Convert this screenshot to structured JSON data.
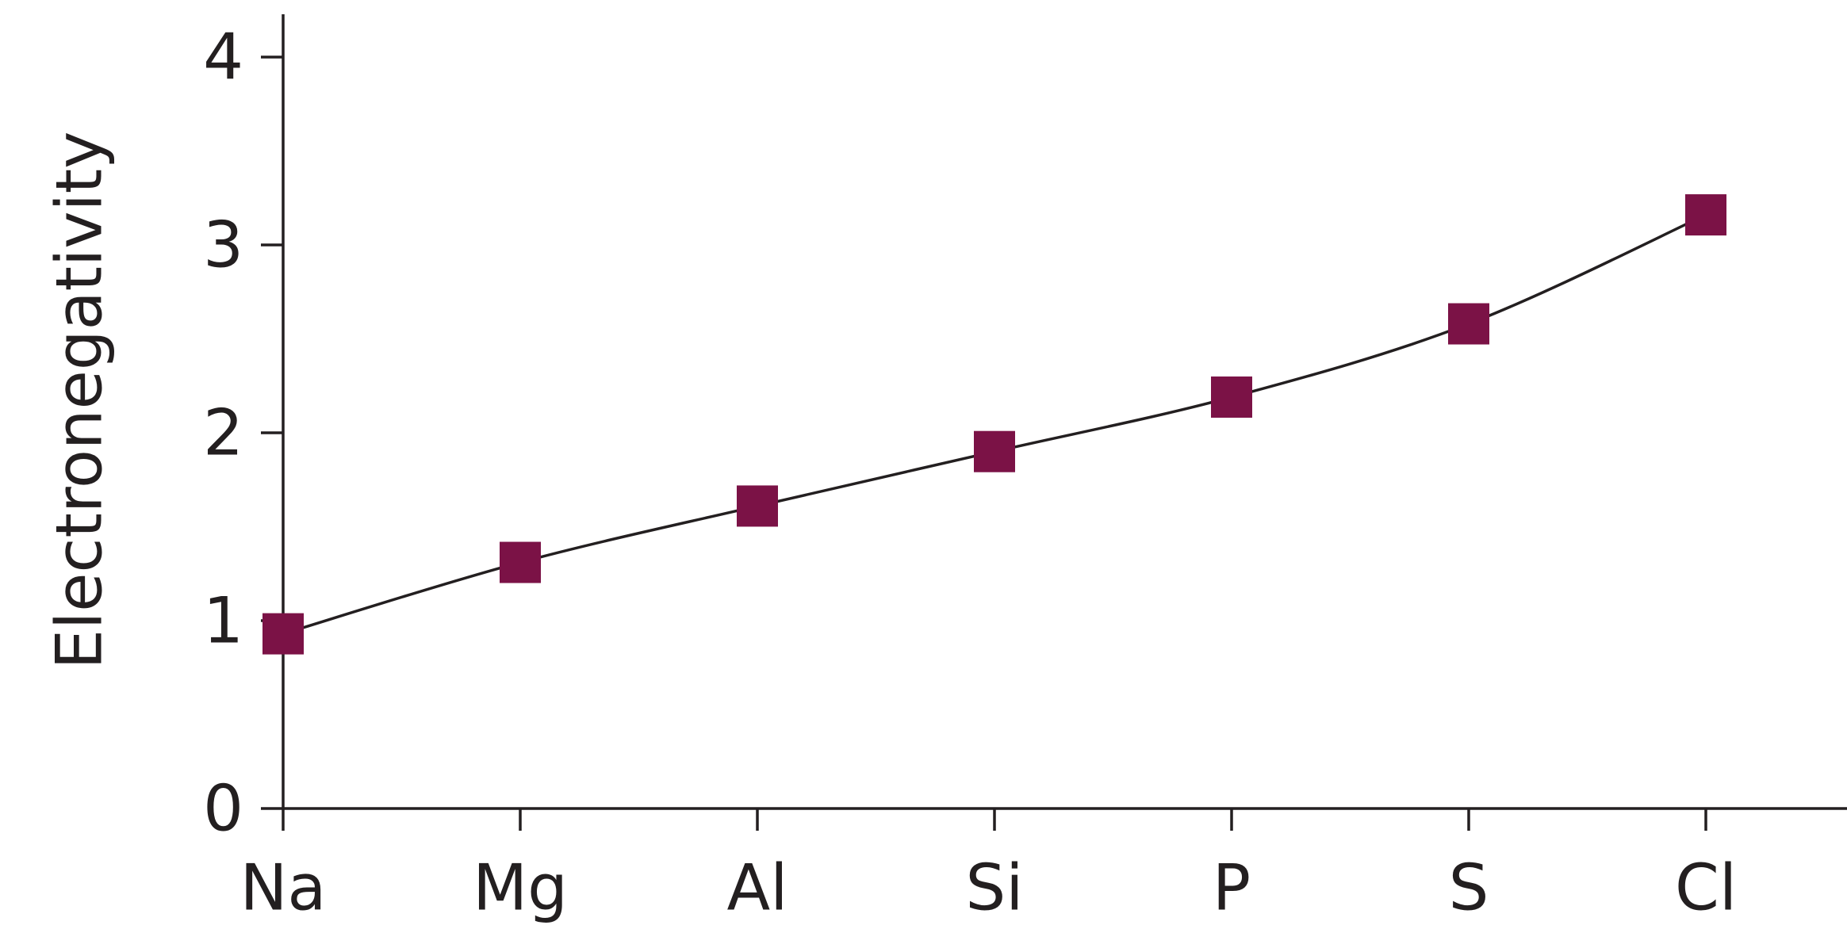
{
  "chart_data": {
    "type": "line",
    "title": "",
    "xlabel": "",
    "ylabel": "Electronegativity",
    "categories": [
      "Na",
      "Mg",
      "Al",
      "Si",
      "P",
      "S",
      "Cl"
    ],
    "series": [
      {
        "values": [
          0.93,
          1.31,
          1.61,
          1.9,
          2.19,
          2.58,
          3.16
        ],
        "color": "#7b1246",
        "marker": "square",
        "line_color": "#231f20"
      }
    ],
    "yticks": [
      "0",
      "1",
      "2",
      "3",
      "4"
    ],
    "ylim": [
      0,
      4
    ],
    "grid": false,
    "legend": "none"
  }
}
